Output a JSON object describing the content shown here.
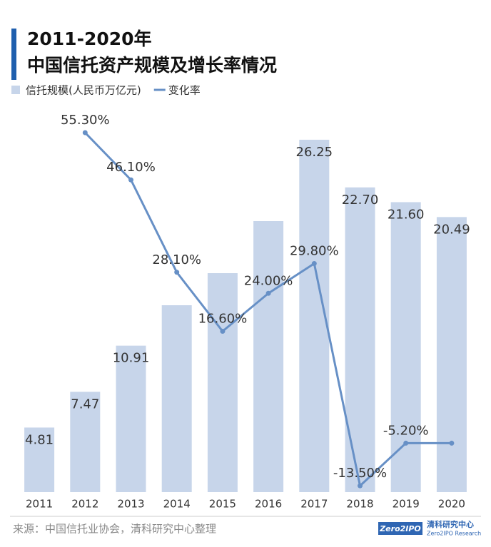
{
  "chart_data": {
    "type": "bar_line",
    "title_lines": [
      "2011-2020年",
      "中国信托资产规模及增长率情况"
    ],
    "categories": [
      "2011",
      "2012",
      "2013",
      "2014",
      "2015",
      "2016",
      "2017",
      "2018",
      "2019",
      "2020"
    ],
    "series": [
      {
        "name": "信托规模(人民币万亿元)",
        "type": "bar",
        "color": "#c7d5ea",
        "values": [
          4.81,
          7.47,
          10.91,
          13.92,
          16.31,
          20.19,
          26.25,
          22.7,
          21.6,
          20.49
        ],
        "value_labels": [
          "4.81",
          "7.47",
          "10.91",
          null,
          null,
          null,
          "26.25",
          "22.70",
          "21.60",
          "20.49"
        ]
      },
      {
        "name": "变化率",
        "type": "line",
        "axis": "y2",
        "color": "#6790c6",
        "values": [
          null,
          55.3,
          46.1,
          28.1,
          16.6,
          24.0,
          29.8,
          -13.5,
          -5.2,
          -5.2
        ],
        "value_labels": [
          null,
          "55.30%",
          "46.10%",
          "28.10%",
          "16.60%",
          "24.00%",
          "29.80%",
          "-13.50%",
          "-5.20%",
          null
        ]
      }
    ],
    "ylim": [
      0,
      28
    ],
    "y2lim": [
      -14.73,
      58.5
    ],
    "source": "来源：中国信托业协会，清科研究中心整理",
    "logo": {
      "mark": "Zero2IPO",
      "name": "清科研究中心",
      "sub": "Zero2IPO Research"
    }
  }
}
